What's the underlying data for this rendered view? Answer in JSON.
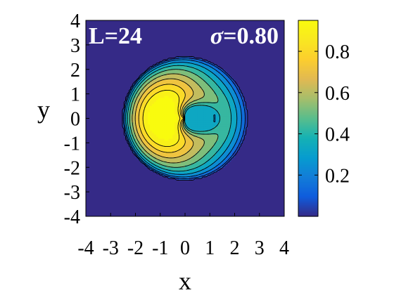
{
  "chart_data": {
    "type": "heatmap",
    "title": "",
    "xlabel": "x",
    "ylabel": "y",
    "xlim": [
      -4,
      4
    ],
    "ylim": [
      -4,
      4
    ],
    "x_ticks": [
      -4,
      -3,
      -2,
      -1,
      0,
      1,
      2,
      3,
      4
    ],
    "y_ticks": [
      -4,
      -3,
      -2,
      -1,
      0,
      1,
      2,
      3,
      4
    ],
    "annotations": [
      {
        "name": "L-label",
        "text": "L=24"
      },
      {
        "name": "sigma-label",
        "symbol": "σ",
        "text": "=0.80"
      }
    ],
    "colorbar": {
      "range": [
        0,
        0.95
      ],
      "ticks": [
        0.2,
        0.4,
        0.6,
        0.8
      ],
      "tick_labels": [
        "0.2",
        "0.4",
        "0.6",
        "0.8"
      ],
      "colormap": "parula"
    },
    "field": {
      "disk_radius": 2.5,
      "background_value": 0.0,
      "description_values": {
        "crescent_peak": 0.93,
        "core_left_value": 0.38,
        "core_right_value": 0.33,
        "right_lobe_value": 0.6
      }
    },
    "grid": false,
    "contour_lines": true
  },
  "colors": {
    "background": "#ffffff",
    "plot_background": "#352a87",
    "contour_line": "#000000",
    "annotation_text": "#ffffff"
  }
}
